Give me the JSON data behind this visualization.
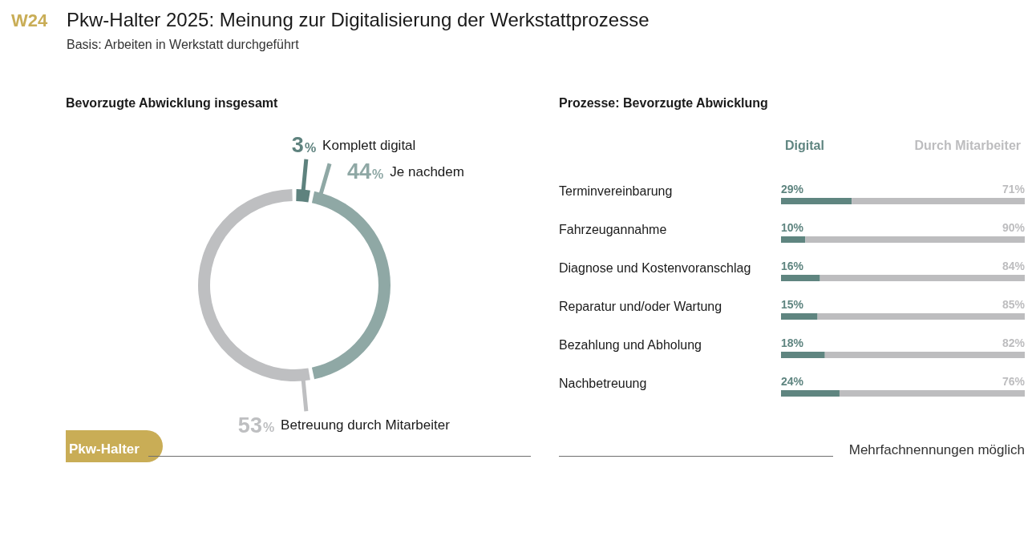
{
  "chart_data": [
    {
      "type": "donut",
      "title": "Pkw-Halter 2025: Meinung zur Digitalisierung der Werkstattprozesse",
      "subtitle": "Basis: Arbeiten in Werkstatt durchgeführt",
      "annotations": [
        "W24",
        "Bevorzugte Abwicklung insgesamt",
        "Pkw-Halter"
      ],
      "categories": [
        "Komplett digital",
        "Je nachdem",
        "Betreuung durch Mitarbeiter"
      ],
      "values": [
        3,
        44,
        53
      ],
      "value_labels": [
        "3%",
        "44%",
        "53%"
      ],
      "colors": [
        "#5e827e",
        "#8fa8a5",
        "#bebfc1"
      ]
    },
    {
      "type": "bar",
      "title": "Prozesse: Bevorzugte Abwicklung",
      "annotations": [
        "Mehrfachnennungen möglich"
      ],
      "orientation": "horizontal",
      "stacked": true,
      "categories": [
        "Terminvereinbarung",
        "Fahrzeugannahme",
        "Diagnose und Kostenvoranschlag",
        "Reparatur und/oder Wartung",
        "Bezahlung und Abholung",
        "Nachbetreuung"
      ],
      "series": [
        {
          "name": "Digital",
          "color": "#5f8580",
          "values": [
            29,
            10,
            16,
            15,
            18,
            24
          ],
          "value_labels": [
            "29%",
            "10%",
            "16%",
            "15%",
            "18%",
            "24%"
          ]
        },
        {
          "name": "Durch Mitarbeiter",
          "color": "#bdbdbf",
          "values": [
            71,
            90,
            84,
            85,
            82,
            76
          ],
          "value_labels": [
            "71%",
            "90%",
            "84%",
            "85%",
            "82%",
            "76%"
          ]
        }
      ],
      "legend": "top",
      "tick_labels": "y"
    }
  ]
}
